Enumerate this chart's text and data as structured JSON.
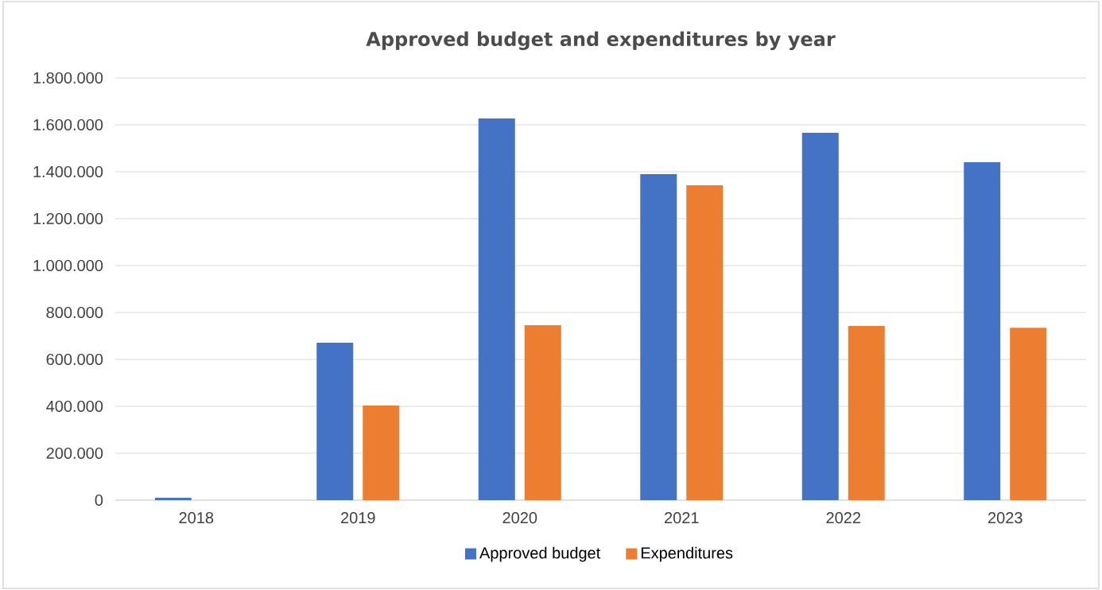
{
  "chart_data": {
    "type": "bar",
    "title": "Approved budget and expenditures by year",
    "categories": [
      "2018",
      "2019",
      "2020",
      "2021",
      "2022",
      "2023"
    ],
    "series": [
      {
        "name": "Approved budget",
        "color": "#4472c4",
        "values": [
          10000,
          671000,
          1627000,
          1390000,
          1566000,
          1441000
        ]
      },
      {
        "name": "Expenditures",
        "color": "#ed7d31",
        "values": [
          null,
          403000,
          746000,
          1342000,
          742000,
          735000
        ]
      }
    ],
    "ylim": [
      0,
      1800000
    ],
    "yticks": [
      {
        "value": 0,
        "label": "0"
      },
      {
        "value": 200000,
        "label": "200.000"
      },
      {
        "value": 400000,
        "label": "400.000"
      },
      {
        "value": 600000,
        "label": "600.000"
      },
      {
        "value": 800000,
        "label": "800.000"
      },
      {
        "value": 1000000,
        "label": "1.000.000"
      },
      {
        "value": 1200000,
        "label": "1.200.000"
      },
      {
        "value": 1400000,
        "label": "1.400.000"
      },
      {
        "value": 1600000,
        "label": "1.600.000"
      },
      {
        "value": 1800000,
        "label": "1.800.000"
      }
    ],
    "grid": "y",
    "legend": "bottom"
  }
}
